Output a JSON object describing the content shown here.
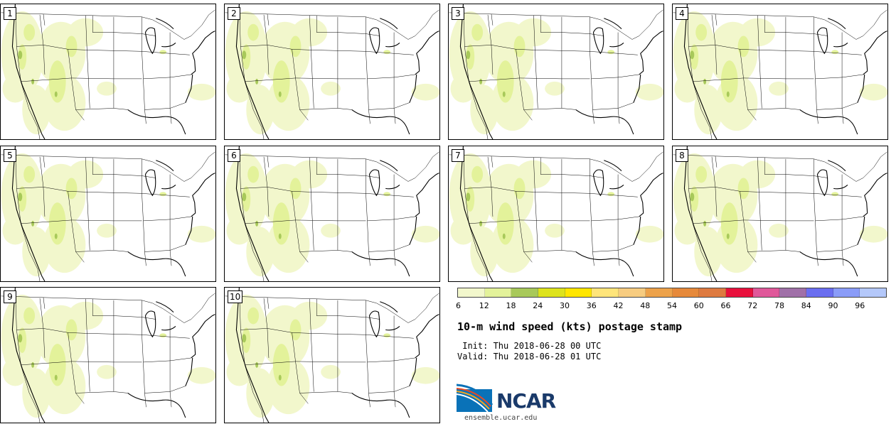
{
  "panels": [
    {
      "label": "1"
    },
    {
      "label": "2"
    },
    {
      "label": "3"
    },
    {
      "label": "4"
    },
    {
      "label": "5"
    },
    {
      "label": "6"
    },
    {
      "label": "7"
    },
    {
      "label": "8"
    },
    {
      "label": "9"
    },
    {
      "label": "10"
    }
  ],
  "legend": {
    "colors": [
      "#f2f7cc",
      "#e3f29a",
      "#a8c95a",
      "#dde31c",
      "#ffe600",
      "#ffe57a",
      "#f7cc80",
      "#eda24a",
      "#e6893a",
      "#de7a40",
      "#e8103c",
      "#e0589a",
      "#a070a8",
      "#6a6ef0",
      "#8a9cf8",
      "#b4c8fa"
    ],
    "ticks": [
      "6",
      "12",
      "18",
      "24",
      "30",
      "36",
      "42",
      "48",
      "54",
      "60",
      "66",
      "72",
      "78",
      "84",
      "90",
      "96"
    ]
  },
  "title": "10-m wind speed (kts) postage stamp",
  "init": " Init: Thu 2018-06-28 00 UTC",
  "valid": "Valid: Thu 2018-06-28 01 UTC",
  "logo": {
    "name": "NCAR",
    "url": "ensemble.ucar.edu"
  }
}
